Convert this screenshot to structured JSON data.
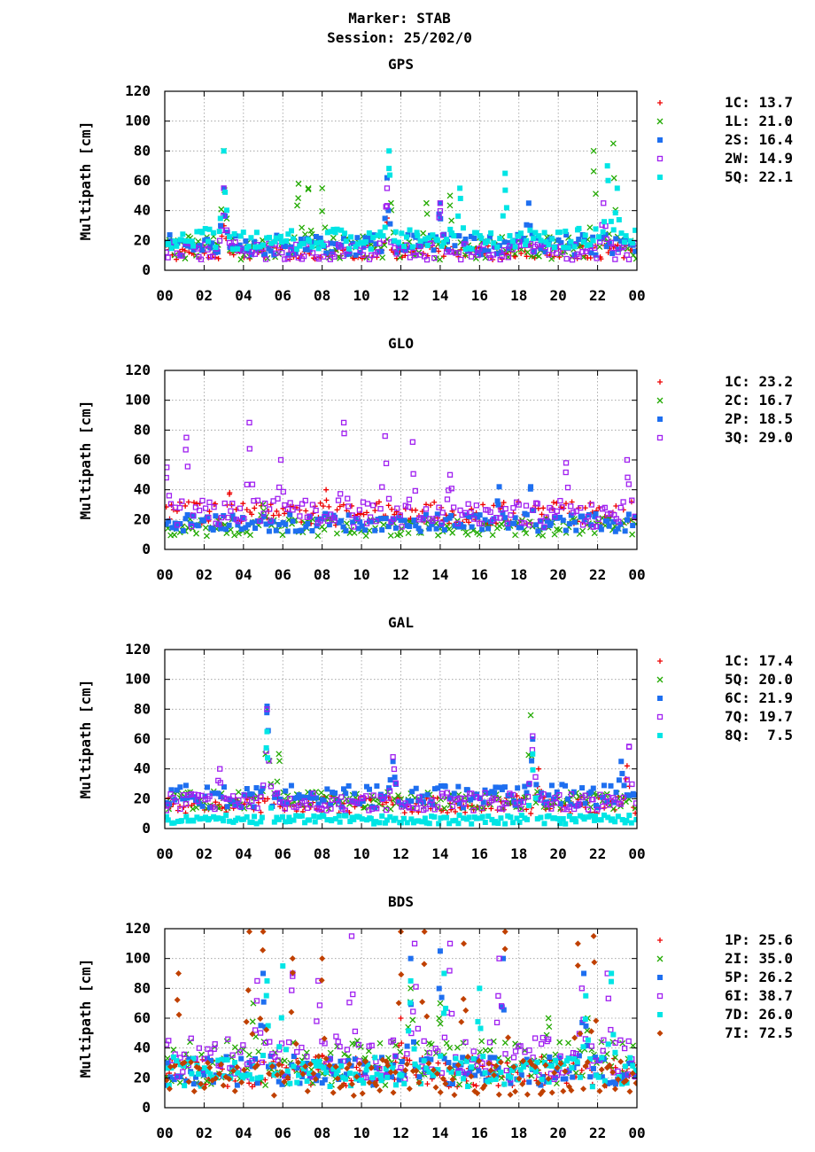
{
  "header": {
    "marker": "Marker: STAB",
    "session": "Session: 25/202/0"
  },
  "colors": {
    "red": "#ee0000",
    "green": "#22aa00",
    "blue": "#1e6ff0",
    "purple": "#a020f0",
    "cyan": "#00e5e5",
    "brown": "#c04000",
    "grid": "#9a9a9a"
  },
  "chart_data": [
    {
      "type": "scatter",
      "title": "GPS",
      "xlabel": "",
      "ylabel": "Multipath [cm]",
      "ylim": [
        0,
        120
      ],
      "xlim": [
        0,
        24
      ],
      "xticks": [
        "00",
        "02",
        "04",
        "06",
        "08",
        "10",
        "12",
        "14",
        "16",
        "18",
        "20",
        "22",
        "00"
      ],
      "yticks": [
        "0",
        "20",
        "40",
        "60",
        "80",
        "100",
        "120"
      ],
      "grid": true,
      "legend_position": "right",
      "series": [
        {
          "name": "1C",
          "label": "1C: 13.7",
          "color": "red",
          "marker": "plus",
          "base": 12,
          "spread": 5,
          "peaks": [
            [
              11.3,
              35
            ],
            [
              3,
              38
            ]
          ]
        },
        {
          "name": "1L",
          "label": "1L: 21.0",
          "color": "green",
          "marker": "cross",
          "base": 15,
          "spread": 8,
          "peaks": [
            [
              3,
              80
            ],
            [
              6.8,
              58
            ],
            [
              7.3,
              55
            ],
            [
              8,
              55
            ],
            [
              11.5,
              45
            ],
            [
              13.3,
              45
            ],
            [
              14.5,
              50
            ],
            [
              21.8,
              80
            ],
            [
              22.8,
              85
            ]
          ]
        },
        {
          "name": "2S",
          "label": "2S: 16.4",
          "color": "blue",
          "marker": "square",
          "base": 17,
          "spread": 7,
          "peaks": [
            [
              3,
              55
            ],
            [
              11.3,
              62
            ],
            [
              14,
              45
            ],
            [
              18.5,
              45
            ]
          ]
        },
        {
          "name": "2W",
          "label": "2W: 14.9",
          "color": "purple",
          "marker": "opensquare",
          "base": 13,
          "spread": 6,
          "peaks": [
            [
              3,
              55
            ],
            [
              11.3,
              55
            ],
            [
              14,
              45
            ],
            [
              22.3,
              45
            ]
          ]
        },
        {
          "name": "5Q",
          "label": "5Q: 22.1",
          "color": "cyan",
          "marker": "square",
          "base": 21,
          "spread": 7,
          "peaks": [
            [
              3,
              80
            ],
            [
              11.4,
              80
            ],
            [
              15,
              55
            ],
            [
              17.3,
              65
            ],
            [
              22.5,
              70
            ],
            [
              23,
              55
            ]
          ]
        }
      ]
    },
    {
      "type": "scatter",
      "title": "GLO",
      "xlabel": "",
      "ylabel": "Multipath [cm]",
      "ylim": [
        0,
        120
      ],
      "xlim": [
        0,
        24
      ],
      "xticks": [
        "00",
        "02",
        "04",
        "06",
        "08",
        "10",
        "12",
        "14",
        "16",
        "18",
        "20",
        "22",
        "00"
      ],
      "yticks": [
        "0",
        "20",
        "40",
        "60",
        "80",
        "100",
        "120"
      ],
      "grid": true,
      "legend_position": "right",
      "series": [
        {
          "name": "1C",
          "label": "1C: 23.2",
          "color": "red",
          "marker": "plus",
          "base": 24,
          "spread": 8,
          "peaks": [
            [
              3.3,
              38
            ],
            [
              8.2,
              40
            ]
          ]
        },
        {
          "name": "2C",
          "label": "2C: 16.7",
          "color": "green",
          "marker": "cross",
          "base": 15,
          "spread": 6,
          "peaks": [
            [
              5,
              30
            ]
          ]
        },
        {
          "name": "2P",
          "label": "2P: 18.5",
          "color": "blue",
          "marker": "square",
          "base": 18,
          "spread": 6,
          "peaks": [
            [
              17,
              42
            ],
            [
              18.6,
              42
            ]
          ]
        },
        {
          "name": "3Q",
          "label": "3Q: 29.0",
          "color": "purple",
          "marker": "opensquare",
          "base": 24,
          "spread": 9,
          "peaks": [
            [
              0.1,
              55
            ],
            [
              1.1,
              75
            ],
            [
              4.3,
              85
            ],
            [
              5.9,
              60
            ],
            [
              9.1,
              85
            ],
            [
              11.2,
              76
            ],
            [
              12.6,
              72
            ],
            [
              14.5,
              50
            ],
            [
              20.4,
              58
            ],
            [
              23.5,
              60
            ]
          ]
        }
      ]
    },
    {
      "type": "scatter",
      "title": "GAL",
      "xlabel": "",
      "ylabel": "Multipath [cm]",
      "ylim": [
        0,
        120
      ],
      "xlim": [
        0,
        24
      ],
      "xticks": [
        "00",
        "02",
        "04",
        "06",
        "08",
        "10",
        "12",
        "14",
        "16",
        "18",
        "20",
        "22",
        "00"
      ],
      "yticks": [
        "0",
        "20",
        "40",
        "60",
        "80",
        "100",
        "120"
      ],
      "grid": true,
      "legend_position": "right",
      "series": [
        {
          "name": "1C",
          "label": "1C: 17.4",
          "color": "red",
          "marker": "plus",
          "base": 16,
          "spread": 6,
          "peaks": [
            [
              19,
              40
            ],
            [
              23.5,
              42
            ]
          ]
        },
        {
          "name": "5Q",
          "label": "5Q: 20.0",
          "color": "green",
          "marker": "cross",
          "base": 19,
          "spread": 6,
          "peaks": [
            [
              5.2,
              80
            ],
            [
              18.6,
              76
            ],
            [
              5.8,
              50
            ]
          ]
        },
        {
          "name": "6C",
          "label": "6C: 21.9",
          "color": "blue",
          "marker": "square",
          "base": 22,
          "spread": 8,
          "peaks": [
            [
              5.2,
              82
            ],
            [
              11.6,
              45
            ],
            [
              18.7,
              60
            ],
            [
              23.2,
              45
            ]
          ]
        },
        {
          "name": "7Q",
          "label": "7Q: 19.7",
          "color": "purple",
          "marker": "opensquare",
          "base": 18,
          "spread": 6,
          "peaks": [
            [
              5.2,
              80
            ],
            [
              2.8,
              40
            ],
            [
              11.6,
              48
            ],
            [
              18.7,
              62
            ],
            [
              23.6,
              55
            ]
          ]
        },
        {
          "name": "8Q",
          "label": "8Q:  7.5",
          "color": "cyan",
          "marker": "square",
          "base": 6,
          "spread": 3,
          "peaks": [
            [
              5.2,
              65
            ],
            [
              18.7,
              50
            ]
          ]
        }
      ]
    },
    {
      "type": "scatter",
      "title": "BDS",
      "xlabel": "",
      "ylabel": "Multipath [cm]",
      "ylim": [
        0,
        120
      ],
      "xlim": [
        0,
        24
      ],
      "xticks": [
        "00",
        "02",
        "04",
        "06",
        "08",
        "10",
        "12",
        "14",
        "16",
        "18",
        "20",
        "22",
        "00"
      ],
      "yticks": [
        "0",
        "20",
        "40",
        "60",
        "80",
        "100",
        "120"
      ],
      "grid": true,
      "legend_position": "right",
      "series": [
        {
          "name": "1P",
          "label": "1P: 25.6",
          "color": "red",
          "marker": "plus",
          "base": 24,
          "spread": 10,
          "peaks": [
            [
              8,
              35
            ],
            [
              12,
              60
            ]
          ]
        },
        {
          "name": "2I",
          "label": "2I: 35.0",
          "color": "green",
          "marker": "cross",
          "base": 30,
          "spread": 15,
          "peaks": [
            [
              4.5,
              70
            ],
            [
              12.5,
              80
            ],
            [
              14,
              70
            ],
            [
              19.5,
              60
            ],
            [
              21.5,
              60
            ]
          ]
        },
        {
          "name": "5P",
          "label": "5P: 26.2",
          "color": "blue",
          "marker": "square",
          "base": 25,
          "spread": 10,
          "peaks": [
            [
              5,
              90
            ],
            [
              12.5,
              100
            ],
            [
              14,
              105
            ],
            [
              17.2,
              100
            ],
            [
              21.3,
              90
            ]
          ]
        },
        {
          "name": "6I",
          "label": "6I: 38.7",
          "color": "purple",
          "marker": "opensquare",
          "base": 33,
          "spread": 15,
          "peaks": [
            [
              4.7,
              85
            ],
            [
              6.5,
              90
            ],
            [
              7.8,
              85
            ],
            [
              9.5,
              115
            ],
            [
              12.7,
              110
            ],
            [
              14.5,
              110
            ],
            [
              17,
              100
            ],
            [
              21.2,
              80
            ],
            [
              22.5,
              90
            ]
          ]
        },
        {
          "name": "7D",
          "label": "7D: 26.0",
          "color": "cyan",
          "marker": "square",
          "base": 24,
          "spread": 10,
          "peaks": [
            [
              5.2,
              85
            ],
            [
              6,
              95
            ],
            [
              12.5,
              85
            ],
            [
              14.2,
              90
            ],
            [
              16,
              80
            ],
            [
              21.4,
              75
            ],
            [
              22.7,
              90
            ]
          ]
        },
        {
          "name": "7I",
          "label": "7I: 72.5",
          "color": "brown",
          "marker": "diamond",
          "base": 20,
          "spread": 12,
          "peaks": [
            [
              0.7,
              90
            ],
            [
              4.3,
              118
            ],
            [
              5,
              118
            ],
            [
              6.5,
              100
            ],
            [
              8,
              100
            ],
            [
              12,
              118
            ],
            [
              13.2,
              118
            ],
            [
              15.2,
              110
            ],
            [
              17.3,
              118
            ],
            [
              21,
              110
            ],
            [
              21.8,
              115
            ]
          ]
        }
      ]
    }
  ]
}
